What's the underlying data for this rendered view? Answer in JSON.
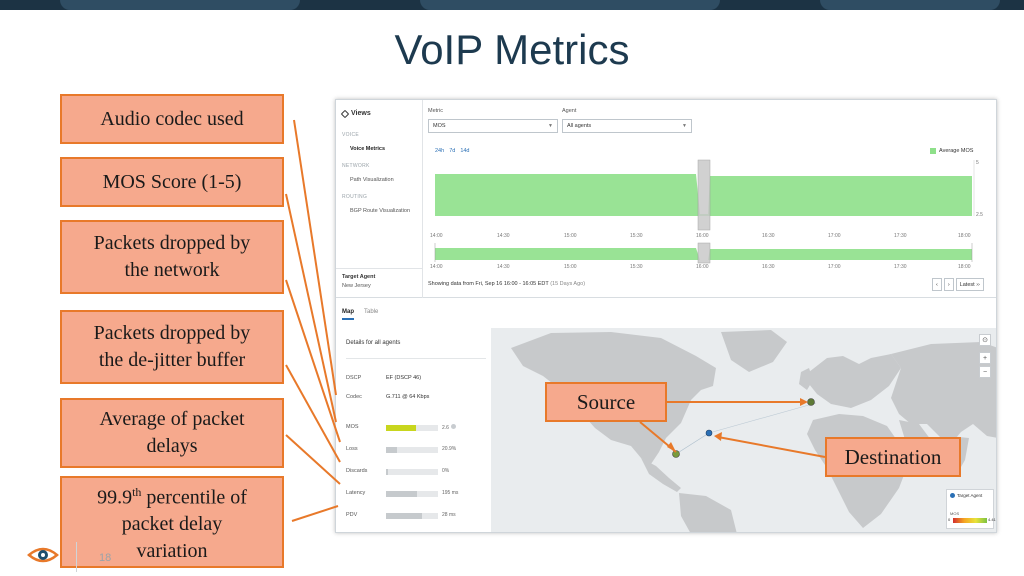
{
  "slide": {
    "title": "VoIP Metrics",
    "page_number": "18"
  },
  "callouts": [
    {
      "lines": [
        "Audio codec used"
      ]
    },
    {
      "lines": [
        "MOS Score (1-5)"
      ]
    },
    {
      "lines": [
        "Packets dropped by",
        "the network"
      ]
    },
    {
      "lines": [
        "Packets dropped by",
        "the de-jitter buffer"
      ]
    },
    {
      "lines": [
        "Average of packet",
        "delays"
      ]
    },
    {
      "lines": [
        "99.9",
        "percentile of",
        "packet delay",
        "variation"
      ],
      "superscript": "th"
    }
  ],
  "map_callouts": {
    "source": "Source",
    "destination": "Destination"
  },
  "app": {
    "sidebar": {
      "title": "Views",
      "sections": [
        {
          "label": "VOICE",
          "items": [
            {
              "label": "Voice Metrics",
              "active": true
            }
          ]
        },
        {
          "label": "NETWORK",
          "items": [
            {
              "label": "Path Visualization",
              "active": false
            }
          ]
        },
        {
          "label": "ROUTING",
          "items": [
            {
              "label": "BGP Route Visualization",
              "active": false
            }
          ]
        }
      ],
      "target_agent_label": "Target Agent",
      "target_agent_value": "New Jersey"
    },
    "metric": {
      "label": "Metric",
      "value": "MOS"
    },
    "agent": {
      "label": "Agent",
      "value": "All agents"
    },
    "time_ranges": [
      "24h",
      "7d",
      "14d"
    ],
    "legend_label": "Average MOS",
    "y_axis_ticks": [
      "5",
      "2.5"
    ],
    "x_axis_ticks": [
      "14:00",
      "14:30",
      "15:00",
      "15:30",
      "16:00",
      "16:30",
      "17:00",
      "17:30",
      "18:00"
    ],
    "showing_text": "Showing data from Fri, Sep 16 16:00 - 16:05 EDT",
    "showing_range": "(15 Days Ago)",
    "nav": {
      "prev": "‹",
      "next": "›",
      "latest": "Latest ››"
    },
    "tabs": [
      {
        "label": "Map",
        "active": true
      },
      {
        "label": "Table",
        "active": false
      }
    ],
    "details": {
      "header": "Details for all agents",
      "static_rows": [
        {
          "key": "DSCP",
          "value": "EF (DSCP 46)"
        },
        {
          "key": "Codec",
          "value": "G.711 @ 64 Kbps"
        }
      ],
      "metric_rows": [
        {
          "key": "MOS",
          "value": "2.6",
          "fraction": 0.58,
          "color": "#c8d61e"
        },
        {
          "key": "Loss",
          "value": "20.9%",
          "fraction": 0.21,
          "color": "#c6cacd"
        },
        {
          "key": "Discards",
          "value": "0%",
          "fraction": 0.03,
          "color": "#c6cacd"
        },
        {
          "key": "Latency",
          "value": "195 ms",
          "fraction": 0.6,
          "color": "#c6cacd"
        },
        {
          "key": "PDV",
          "value": "28 ms",
          "fraction": 0.7,
          "color": "#c6cacd"
        }
      ]
    },
    "map_legend": {
      "target_label": "Target Agent",
      "title": "MOS",
      "min": "0",
      "max": "4.41"
    },
    "zoom": {
      "reset": "⊙",
      "in": "+",
      "out": "−"
    }
  },
  "chart_data": {
    "type": "area",
    "title": "",
    "series": [
      {
        "name": "Average MOS",
        "color": "#8ee08a"
      }
    ],
    "x": [
      "14:00",
      "14:30",
      "15:00",
      "15:30",
      "16:00",
      "16:30",
      "17:00",
      "17:30",
      "18:00"
    ],
    "ylim": [
      2.5,
      5
    ],
    "y_ticks": [
      5,
      2.5
    ],
    "selected_window": "16:00 - 16:05",
    "grid": false,
    "legend": "top-right"
  },
  "colors": {
    "callout_fill": "#f6a98d",
    "callout_border": "#e8792a",
    "title": "#1d3a4f",
    "area": "#8ee08a",
    "link": "#2a6fb5"
  }
}
